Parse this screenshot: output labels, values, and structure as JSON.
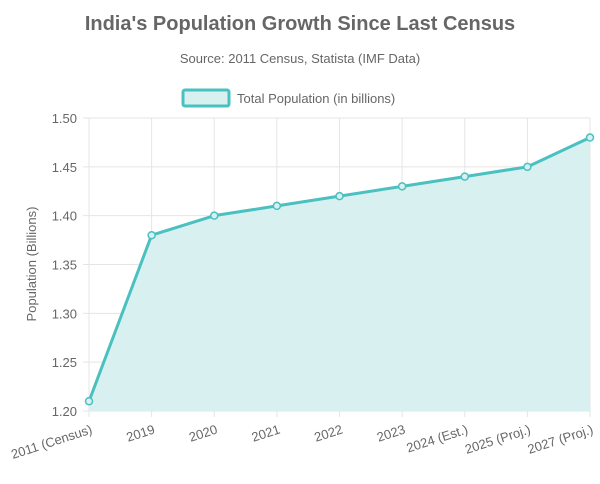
{
  "chart_data": {
    "type": "area",
    "title": "India's Population Growth Since Last Census",
    "subtitle": "Source: 2011 Census, Statista (IMF Data)",
    "categories": [
      "2011 (Census)",
      "2019",
      "2020",
      "2021",
      "2022",
      "2023",
      "2024 (Est.)",
      "2025 (Proj.)",
      "2027 (Proj.)"
    ],
    "series": [
      {
        "name": "Total Population (in billions)",
        "values": [
          1.21,
          1.38,
          1.4,
          1.41,
          1.42,
          1.43,
          1.44,
          1.45,
          1.48
        ]
      }
    ],
    "xlabel": "",
    "ylabel": "Population (Billions)",
    "ylim": [
      1.2,
      1.5
    ],
    "yticks": [
      "1.20",
      "1.25",
      "1.30",
      "1.35",
      "1.40",
      "1.45",
      "1.50"
    ],
    "grid": true,
    "legend_position": "top",
    "colors": {
      "line": "#4bc0c0",
      "fill": "#d8f0f0",
      "title": "#666666",
      "text": "#666666",
      "grid": "#e5e5e5"
    }
  }
}
